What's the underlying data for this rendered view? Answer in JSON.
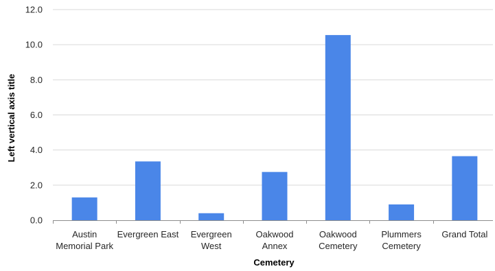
{
  "chart_data": {
    "type": "bar",
    "categories": [
      [
        "Austin",
        "Memorial Park"
      ],
      [
        "Evergreen East"
      ],
      [
        "Evergreen",
        "West"
      ],
      [
        "Oakwood",
        "Annex"
      ],
      [
        "Oakwood",
        "Cemetery"
      ],
      [
        "Plummers",
        "Cemetery"
      ],
      [
        "Grand Total"
      ]
    ],
    "values": [
      1.3,
      3.35,
      0.4,
      2.75,
      10.55,
      0.9,
      3.65
    ],
    "ylim": [
      0,
      12
    ],
    "yticks": [
      "0.0",
      "2.0",
      "4.0",
      "6.0",
      "8.0",
      "10.0",
      "12.0"
    ],
    "xlabel": "Cemetery",
    "ylabel": "Left vertical axis title",
    "grid": true,
    "legend": "none",
    "bar_color": "#4a86e8"
  }
}
